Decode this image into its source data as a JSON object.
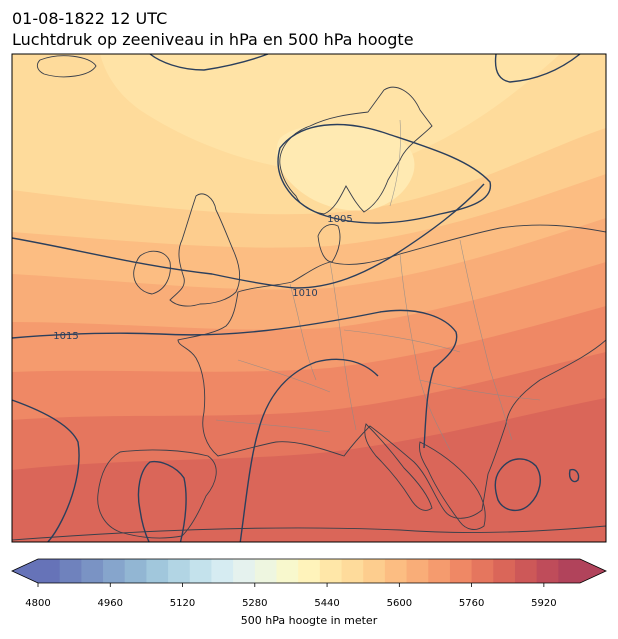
{
  "header": {
    "date_line": "01-08-1822 12 UTC",
    "title": "Luchtdruk op zeeniveau in hPa en 500 hPa hoogte"
  },
  "map": {
    "isobars": [
      {
        "label": "1005",
        "value": 1005
      },
      {
        "label": "1010",
        "value": 1010
      },
      {
        "label": "1015",
        "value": 1015
      }
    ],
    "isobar_color": "#2b3f5c",
    "coast_color": "#3a3f4a",
    "border_color": "#8a8a8a"
  },
  "colorbar": {
    "title": "500 hPa hoogte in meter",
    "min": 4800,
    "max": 6000,
    "step": 40,
    "tick_labels": [
      "4800",
      "4960",
      "5120",
      "5280",
      "5440",
      "5600",
      "5760",
      "5920"
    ],
    "colors": [
      "#6673b8",
      "#6f82bd",
      "#7a93c4",
      "#86a5cc",
      "#92b6d3",
      "#a1c7dc",
      "#b2d5e4",
      "#c4e2ec",
      "#d6ecf2",
      "#e5f2ee",
      "#eef6e0",
      "#f8f8cd",
      "#fff3bb",
      "#ffe7a8",
      "#fedb9b",
      "#fdcd8e",
      "#fcbd82",
      "#f9ad78",
      "#f59b6e",
      "#ef8865",
      "#e5765e",
      "#da6659",
      "#cd5858",
      "#bf4c5a",
      "#b1435b"
    ]
  }
}
